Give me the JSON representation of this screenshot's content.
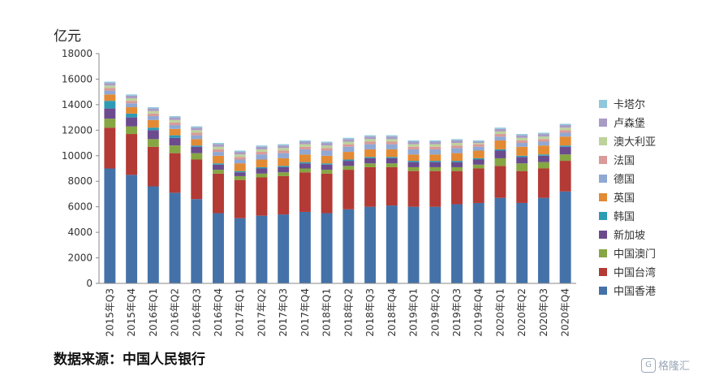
{
  "unit_label": "亿元",
  "source_note": "数据来源：中国人民银行",
  "watermark_text": "格隆汇",
  "chart_data": {
    "type": "bar",
    "stacked": true,
    "ylabel": "亿元",
    "ylim": [
      0,
      18000
    ],
    "yticks": [
      0,
      2000,
      4000,
      6000,
      8000,
      10000,
      12000,
      14000,
      16000,
      18000
    ],
    "grid": false,
    "legend_position": "right",
    "categories": [
      "2015年Q3",
      "2015年Q4",
      "2016年Q1",
      "2016年Q2",
      "2016年Q3",
      "2016年Q4",
      "2017年Q1",
      "2017年Q2",
      "2017年Q3",
      "2017年Q4",
      "2018年Q1",
      "2018年Q2",
      "2018年Q3",
      "2018年Q4",
      "2019年Q1",
      "2019年Q2",
      "2019年Q3",
      "2019年Q4",
      "2020年Q1",
      "2020年Q2",
      "2020年Q3",
      "2020年Q4"
    ],
    "series": [
      {
        "name": "中国香港",
        "color": "#4472a8",
        "values": [
          9000,
          8500,
          7600,
          7100,
          6600,
          5500,
          5100,
          5300,
          5400,
          5600,
          5500,
          5800,
          6000,
          6100,
          6000,
          6000,
          6200,
          6300,
          6700,
          6300,
          6700,
          7200
        ]
      },
      {
        "name": "中国台湾",
        "color": "#b33a35",
        "values": [
          3200,
          3200,
          3100,
          3100,
          3100,
          3100,
          3000,
          3000,
          3000,
          3100,
          3100,
          3100,
          3100,
          3000,
          2800,
          2800,
          2600,
          2700,
          2500,
          2500,
          2300,
          2400
        ]
      },
      {
        "name": "中国澳门",
        "color": "#86a543",
        "values": [
          700,
          600,
          600,
          600,
          500,
          300,
          300,
          300,
          300,
          300,
          300,
          300,
          300,
          300,
          300,
          300,
          300,
          300,
          600,
          600,
          500,
          500
        ]
      },
      {
        "name": "新加坡",
        "color": "#6b4b8e",
        "values": [
          800,
          700,
          700,
          600,
          500,
          400,
          300,
          400,
          400,
          400,
          400,
          400,
          400,
          400,
          400,
          400,
          400,
          400,
          600,
          500,
          500,
          600
        ]
      },
      {
        "name": "韩国",
        "color": "#2e9bb5",
        "values": [
          600,
          300,
          200,
          200,
          100,
          100,
          100,
          100,
          100,
          100,
          100,
          100,
          100,
          100,
          100,
          100,
          100,
          100,
          100,
          100,
          100,
          100
        ]
      },
      {
        "name": "英国",
        "color": "#e38a34",
        "values": [
          500,
          500,
          600,
          500,
          500,
          600,
          600,
          600,
          600,
          600,
          600,
          600,
          600,
          600,
          500,
          500,
          600,
          600,
          700,
          700,
          700,
          700
        ]
      },
      {
        "name": "德国",
        "color": "#8fa8d4",
        "values": [
          300,
          300,
          300,
          300,
          300,
          300,
          300,
          400,
          400,
          400,
          400,
          400,
          400,
          400,
          400,
          400,
          400,
          300,
          300,
          300,
          300,
          300
        ]
      },
      {
        "name": "法国",
        "color": "#d99a98",
        "values": [
          200,
          200,
          200,
          200,
          200,
          200,
          200,
          200,
          200,
          200,
          200,
          200,
          200,
          200,
          200,
          200,
          200,
          200,
          200,
          200,
          200,
          200
        ]
      },
      {
        "name": "澳大利亚",
        "color": "#bed29b",
        "values": [
          200,
          200,
          200,
          200,
          200,
          200,
          200,
          200,
          200,
          200,
          200,
          200,
          200,
          200,
          200,
          200,
          200,
          100,
          200,
          200,
          200,
          200
        ]
      },
      {
        "name": "卢森堡",
        "color": "#a99bc5",
        "values": [
          200,
          200,
          200,
          200,
          200,
          200,
          200,
          200,
          200,
          200,
          200,
          200,
          200,
          200,
          200,
          200,
          200,
          100,
          200,
          200,
          200,
          200
        ]
      },
      {
        "name": "卡塔尔",
        "color": "#8fc8dd",
        "values": [
          100,
          100,
          100,
          100,
          100,
          100,
          100,
          100,
          100,
          100,
          100,
          100,
          100,
          100,
          100,
          100,
          100,
          100,
          100,
          100,
          100,
          100
        ]
      }
    ]
  }
}
